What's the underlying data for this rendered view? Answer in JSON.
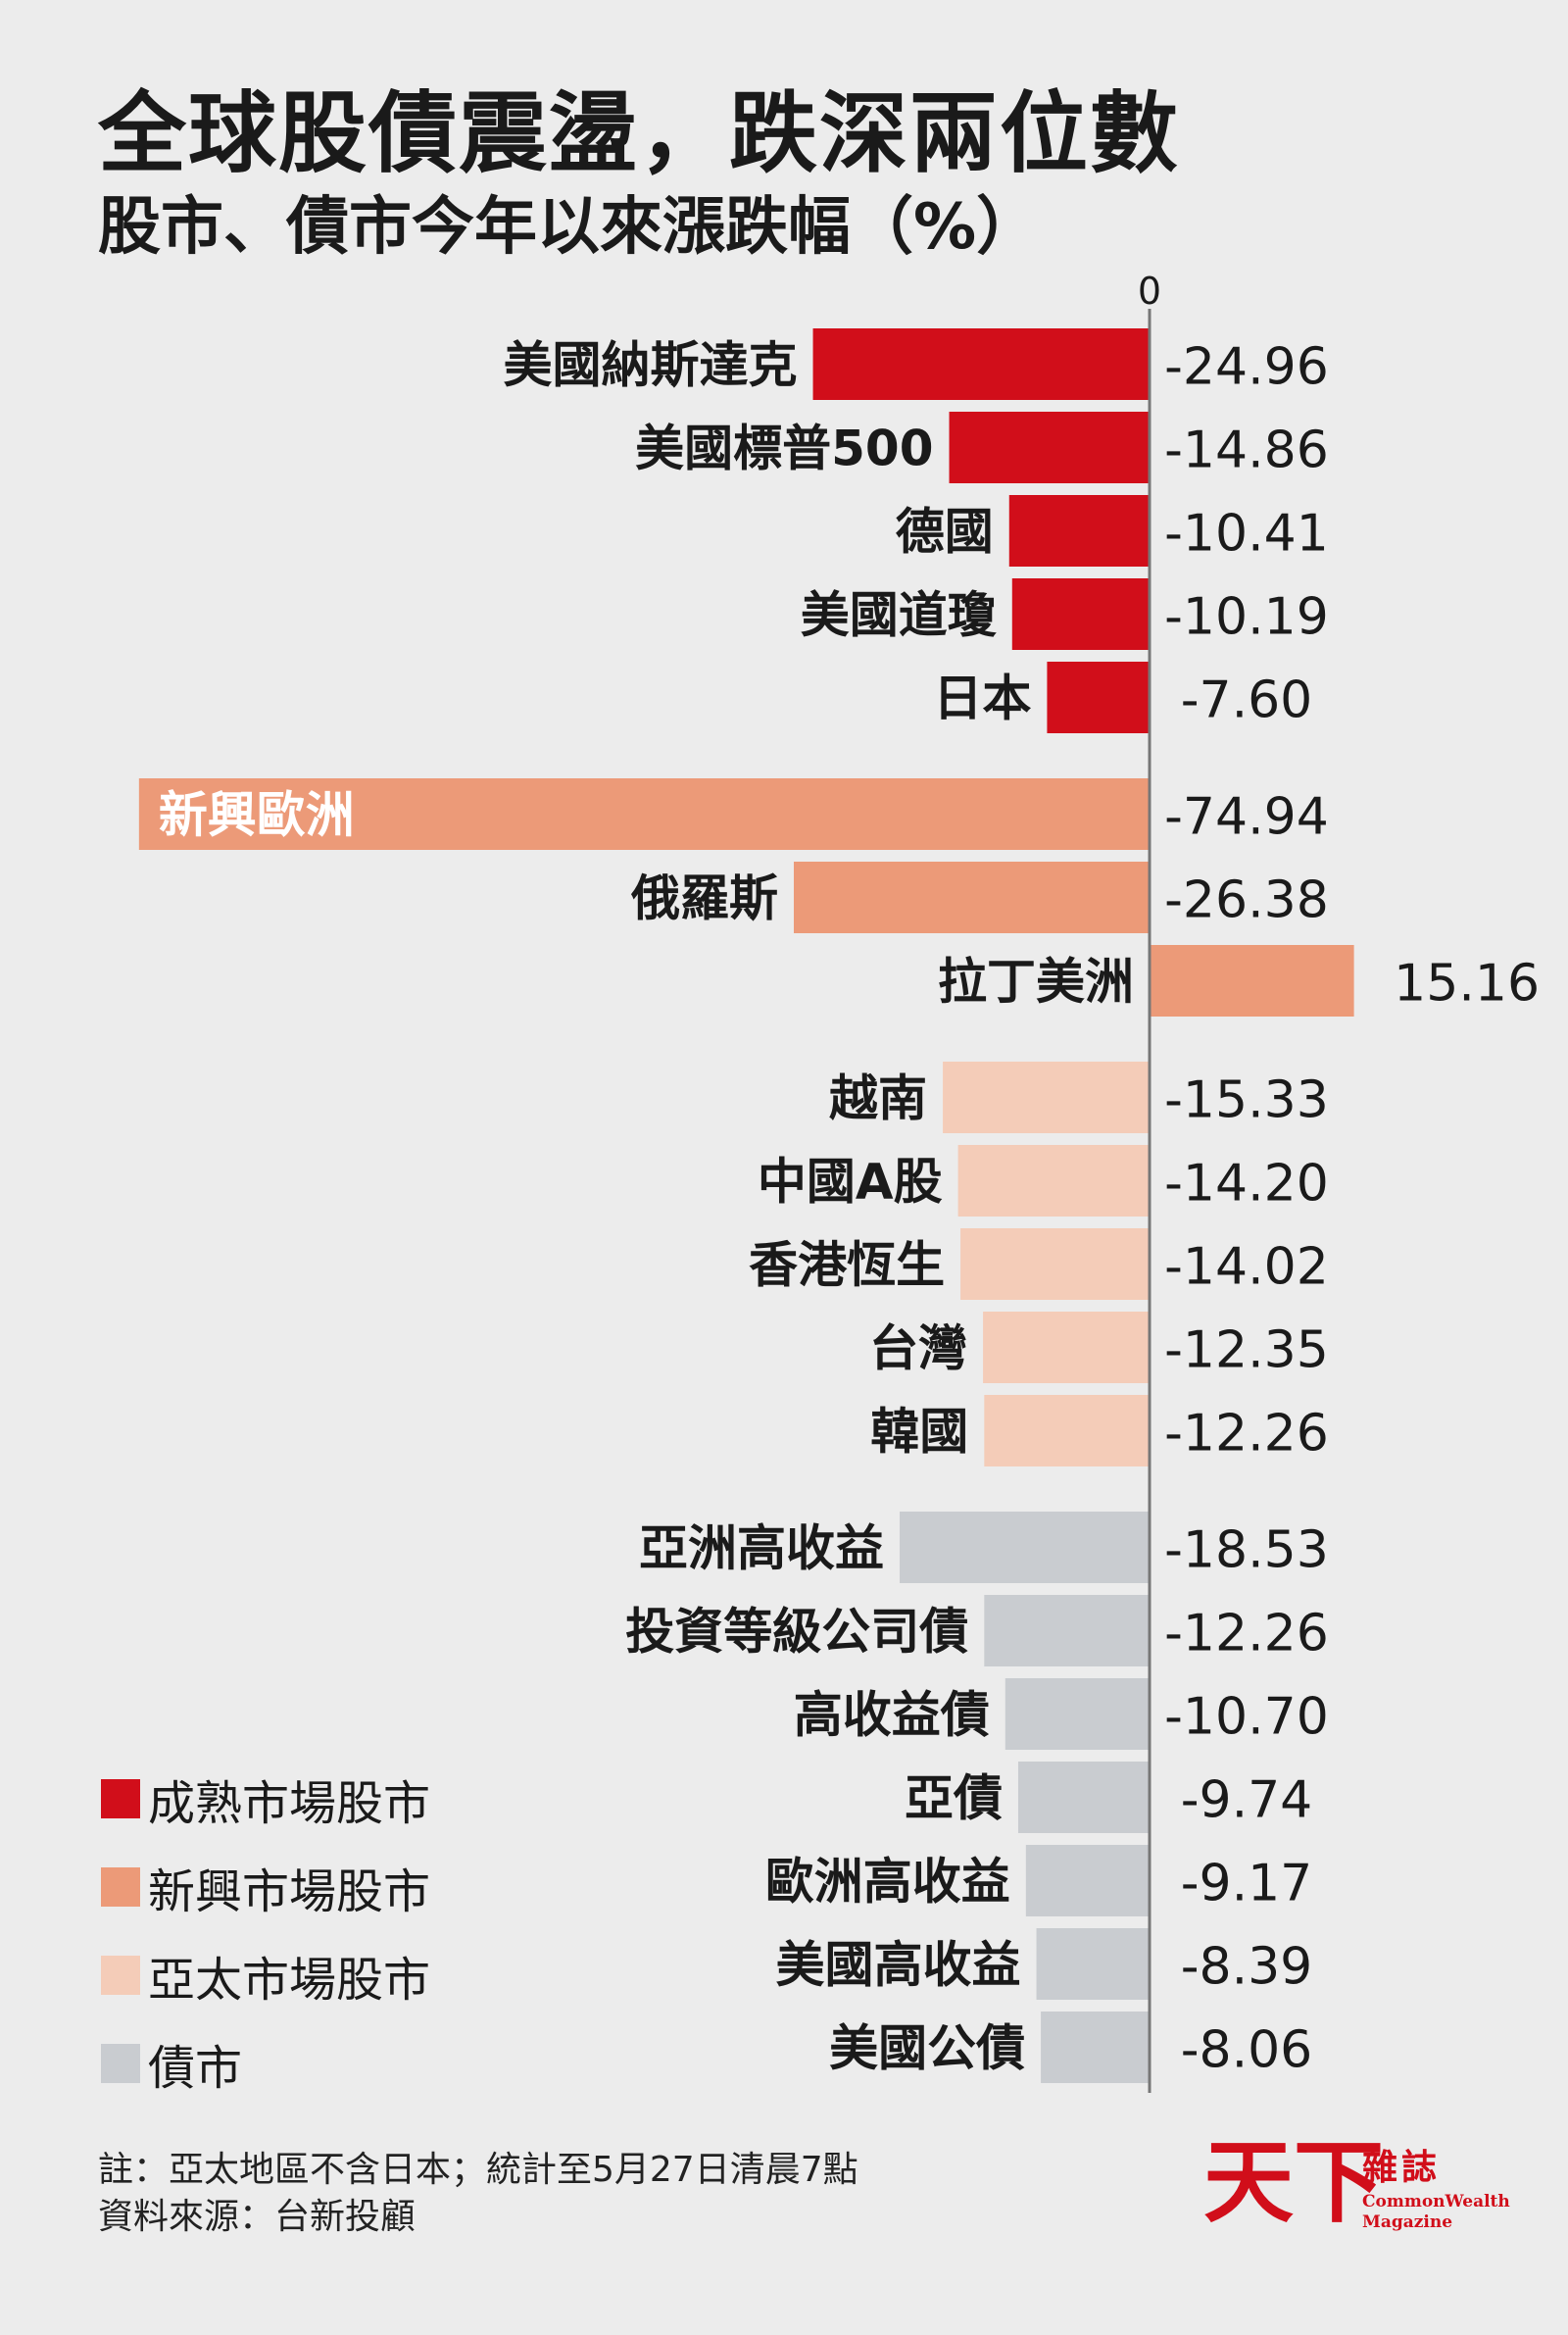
{
  "chart_data": {
    "type": "bar",
    "orientation": "horizontal",
    "title": "全球股債震盪，跌深兩位數",
    "subtitle": "股市、債市今年以來漲跌幅（%）",
    "zero_label": "0",
    "groups": [
      {
        "name": "成熟市場股市",
        "color": "#d10e1a",
        "items": [
          {
            "label": "美國納斯達克",
            "value": -24.96,
            "value_label": "-24.96"
          },
          {
            "label": "美國標普500",
            "value": -14.86,
            "value_label": "-14.86"
          },
          {
            "label": "德國",
            "value": -10.41,
            "value_label": "-10.41"
          },
          {
            "label": "美國道瓊",
            "value": -10.19,
            "value_label": "-10.19"
          },
          {
            "label": "日本",
            "value": -7.6,
            "value_label": "-7.60"
          }
        ]
      },
      {
        "name": "新興市場股市",
        "color": "#ec9a78",
        "items": [
          {
            "label": "新興歐洲",
            "value": -74.94,
            "value_label": "-74.94"
          },
          {
            "label": "俄羅斯",
            "value": -26.38,
            "value_label": "-26.38"
          },
          {
            "label": "拉丁美洲",
            "value": 15.16,
            "value_label": "15.16"
          }
        ]
      },
      {
        "name": "亞太市場股市",
        "color": "#f4ccb8",
        "items": [
          {
            "label": "越南",
            "value": -15.33,
            "value_label": "-15.33"
          },
          {
            "label": "中國A股",
            "value": -14.2,
            "value_label": "-14.20"
          },
          {
            "label": "香港恆生",
            "value": -14.02,
            "value_label": "-14.02"
          },
          {
            "label": "台灣",
            "value": -12.35,
            "value_label": "-12.35"
          },
          {
            "label": "韓國",
            "value": -12.26,
            "value_label": "-12.26"
          }
        ]
      },
      {
        "name": "債市",
        "color": "#c9ccd0",
        "items": [
          {
            "label": "亞洲高收益",
            "value": -18.53,
            "value_label": "-18.53"
          },
          {
            "label": "投資等級公司債",
            "value": -12.26,
            "value_label": "-12.26"
          },
          {
            "label": "高收益債",
            "value": -10.7,
            "value_label": "-10.70"
          },
          {
            "label": "亞債",
            "value": -9.74,
            "value_label": "-9.74"
          },
          {
            "label": "歐洲高收益",
            "value": -9.17,
            "value_label": "-9.17"
          },
          {
            "label": "美國高收益",
            "value": -8.39,
            "value_label": "-8.39"
          },
          {
            "label": "美國公債",
            "value": -8.06,
            "value_label": "-8.06"
          }
        ]
      }
    ]
  },
  "notes": {
    "line1": "註：亞太地區不含日本；統計至5月27日清晨7點",
    "line2": "資料來源：台新投顧"
  },
  "logo": {
    "cn": "天下",
    "zz": "雜誌",
    "en": "CommonWealth Magazine"
  }
}
